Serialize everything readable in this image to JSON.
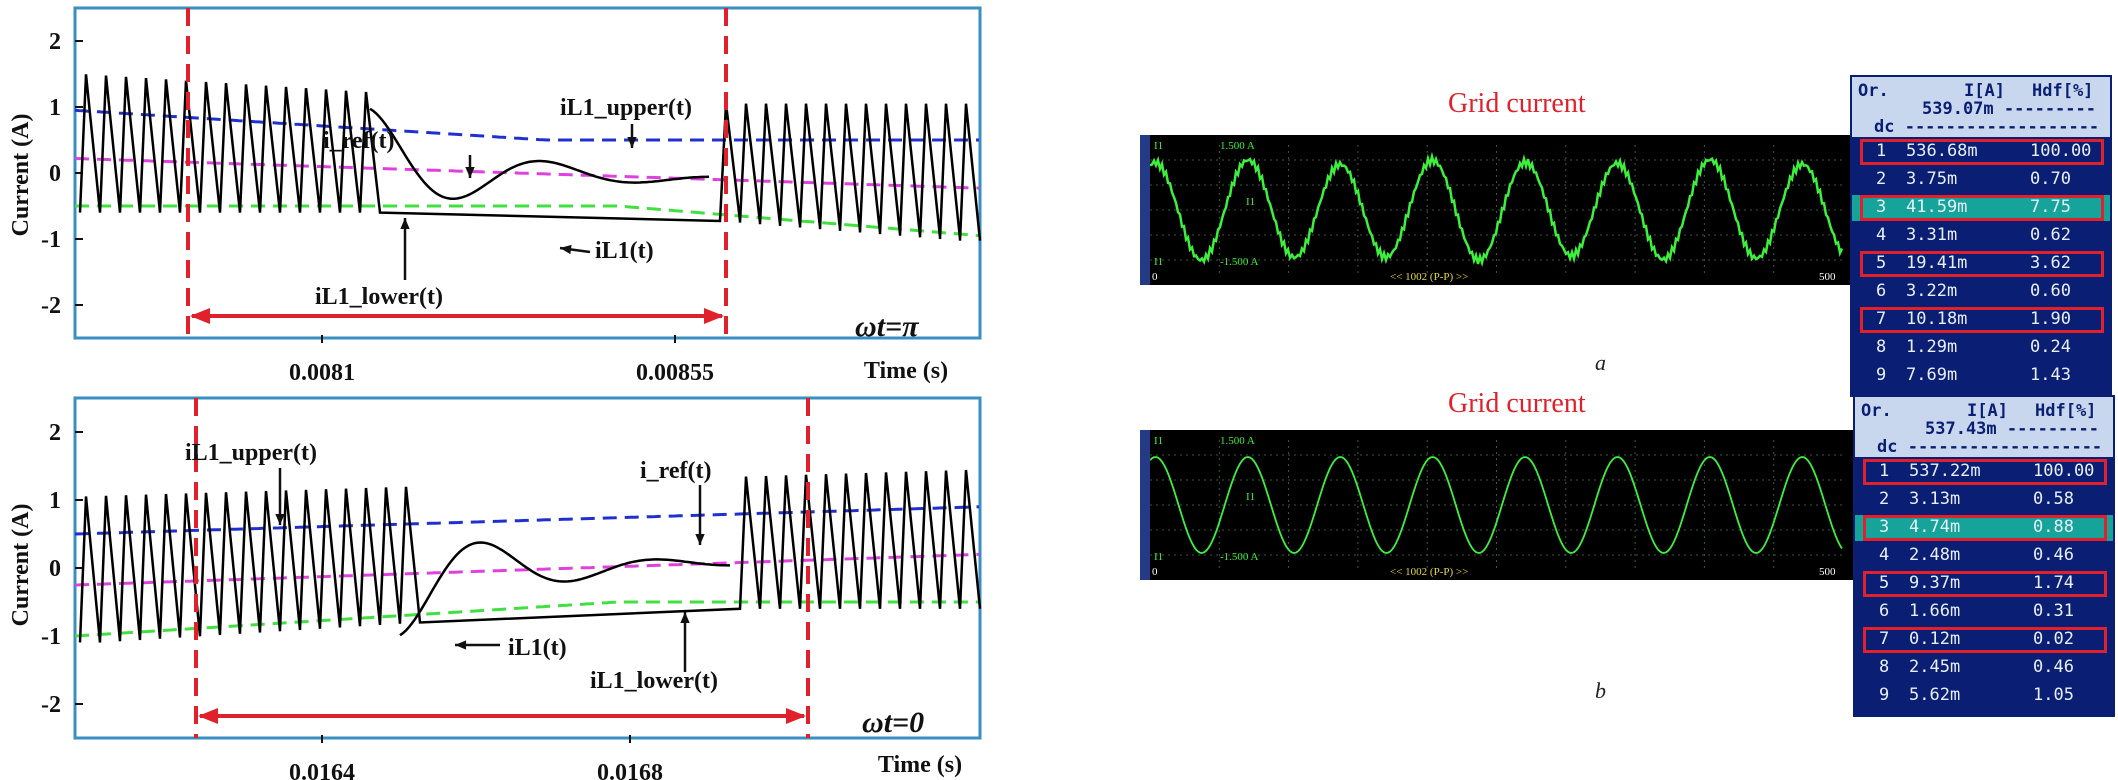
{
  "chart_data": [
    {
      "type": "line",
      "ylabel": "Current (A)",
      "xlabel": "Time (s)",
      "ylim": [
        -2.5,
        2.5
      ],
      "yticks": [
        "2",
        "1",
        "0",
        "-1",
        "-2"
      ],
      "xticks": [
        "0.0081",
        "0.00855"
      ],
      "condition": "ωt=π",
      "annotations": [
        "i_ref(t)",
        "iL1_upper(t)",
        "iL1(t)",
        "iL1_lower(t)"
      ],
      "series_colors": {
        "iL1": "#000000",
        "upper": "#2030d0",
        "ref": "#e040e0",
        "lower": "#40e040",
        "marker": "#e0202a"
      }
    },
    {
      "type": "line",
      "ylabel": "Current (A)",
      "xlabel": "Time (s)",
      "ylim": [
        -2.5,
        2.5
      ],
      "yticks": [
        "2",
        "1",
        "0",
        "-1",
        "-2"
      ],
      "xticks": [
        "0.0164",
        "0.0168"
      ],
      "condition": "ωt=0",
      "annotations": [
        "iL1_upper(t)",
        "i_ref(t)",
        "iL1(t)",
        "iL1_lower(t)"
      ],
      "series_colors": {
        "iL1": "#000000",
        "upper": "#2030d0",
        "ref": "#e040e0",
        "lower": "#40e040",
        "marker": "#e0202a"
      }
    },
    {
      "type": "table",
      "title": "Grid current",
      "caption": "a",
      "scope": {
        "top_label": "I1",
        "scale_top": "1.500 A",
        "scale_bottom": "-1.500 A",
        "mid_label": "I1",
        "footer": "<< 1002 (P-P) >>",
        "x_start": "0",
        "x_end": "500"
      },
      "columns": [
        "Or.",
        "I[A]",
        "Hdf[%]"
      ],
      "total": "539.07m",
      "dc_label": "dc",
      "rows": [
        [
          "1",
          "536.68m",
          "100.00"
        ],
        [
          "2",
          "3.75m",
          "0.70"
        ],
        [
          "3",
          "41.59m",
          "7.75"
        ],
        [
          "4",
          "3.31m",
          "0.62"
        ],
        [
          "5",
          "19.41m",
          "3.62"
        ],
        [
          "6",
          "3.22m",
          "0.60"
        ],
        [
          "7",
          "10.18m",
          "1.90"
        ],
        [
          "8",
          "1.29m",
          "0.24"
        ],
        [
          "9",
          "7.69m",
          "1.43"
        ]
      ]
    },
    {
      "type": "table",
      "title": "Grid current",
      "caption": "b",
      "scope": {
        "top_label": "I1",
        "scale_top": "1.500 A",
        "scale_bottom": "-1.500 A",
        "mid_label": "I1",
        "footer": "<< 1002 (P-P) >>",
        "x_start": "0",
        "x_end": "500"
      },
      "columns": [
        "Or.",
        "I[A]",
        "Hdf[%]"
      ],
      "total": "537.43m",
      "dc_label": "dc",
      "rows": [
        [
          "1",
          "537.22m",
          "100.00"
        ],
        [
          "2",
          "3.13m",
          "0.58"
        ],
        [
          "3",
          "4.74m",
          "0.88"
        ],
        [
          "4",
          "2.48m",
          "0.46"
        ],
        [
          "5",
          "9.37m",
          "1.74"
        ],
        [
          "6",
          "1.66m",
          "0.31"
        ],
        [
          "7",
          "0.12m",
          "0.02"
        ],
        [
          "8",
          "2.45m",
          "0.46"
        ],
        [
          "9",
          "5.62m",
          "1.05"
        ]
      ]
    }
  ]
}
